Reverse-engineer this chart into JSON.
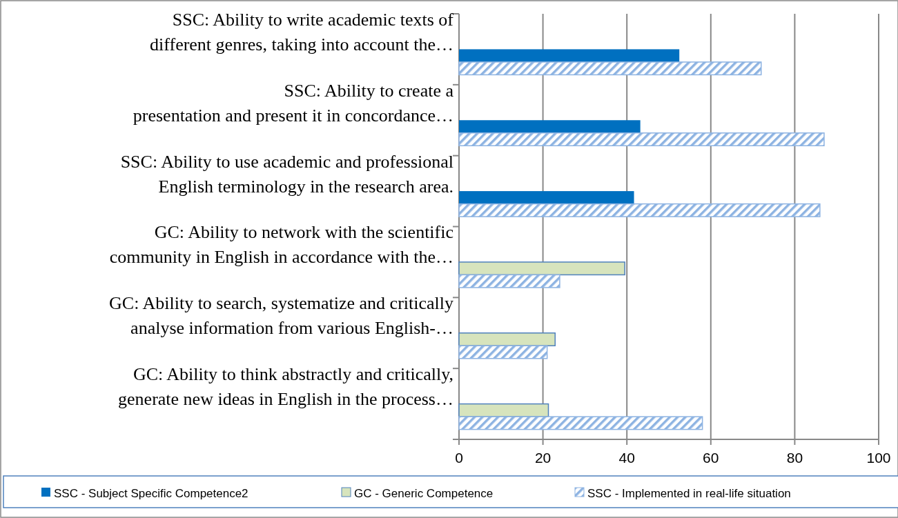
{
  "chart_data": {
    "type": "bar",
    "orientation": "horizontal",
    "categories": [
      "SSC: Ability to write academic texts of\ndifferent genres, taking into account the…",
      "SSC: Ability to create a\npresentation and present it in concordance…",
      "SSC: Ability to use academic and professional\nEnglish terminology in the research area.",
      "GC: Ability to network with the scientific\ncommunity in English in accordance with the…",
      "GC: Ability to search, systematize and critically\nanalyse information from various English-…",
      "GC: Ability to think abstractly and critically,\ngenerate new ideas in English in the process…"
    ],
    "series": [
      {
        "name": "SSC - Subject Specific Competence2",
        "color": "#0070c0",
        "values": [
          52.5,
          43.2,
          41.7,
          null,
          null,
          null
        ]
      },
      {
        "name": "GC - Generic Competence",
        "color": "#d7e4bd",
        "values": [
          null,
          null,
          null,
          39.5,
          22.9,
          21.3
        ]
      },
      {
        "name": "SSC - Implemented in real-life situation",
        "color": "#8db3e2",
        "values": [
          72,
          87,
          86,
          24,
          21,
          58
        ]
      }
    ],
    "xlim": [
      0,
      100
    ],
    "xticks": [
      0,
      20,
      40,
      60,
      80,
      100
    ],
    "grid": "x",
    "legend": "bottom"
  }
}
